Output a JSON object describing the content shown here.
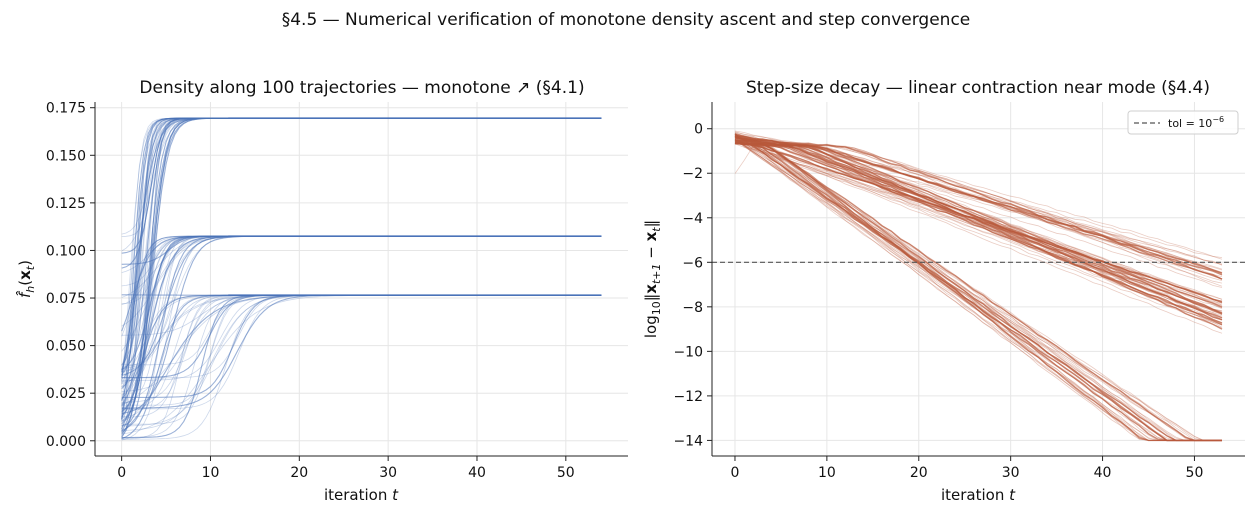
{
  "figure": {
    "suptitle": "§4.5 — Numerical verification of monotone density ascent and step convergence"
  },
  "chart_data": [
    {
      "type": "line",
      "title": "Density along 100 trajectories — monotone ↗ (§4.1)",
      "xlabel": "iteration t",
      "ylabel": "f̂h(xt)",
      "xlim": [
        -3,
        57
      ],
      "ylim": [
        -0.008,
        0.178
      ],
      "xticks": [
        0,
        10,
        20,
        30,
        40,
        50
      ],
      "yticks": [
        0.0,
        0.025,
        0.05,
        0.075,
        0.1,
        0.125,
        0.15,
        0.175
      ],
      "ytick_labels": [
        "0.000",
        "0.025",
        "0.050",
        "0.075",
        "0.100",
        "0.125",
        "0.150",
        "0.175"
      ],
      "grid": true,
      "color": "#4a72b8",
      "n_trajectories": 100,
      "x_end": 54,
      "plateaus": [
        0.1695,
        0.1075,
        0.0765
      ]
    },
    {
      "type": "line",
      "title": "Step-size decay — linear contraction near mode (§4.4)",
      "xlabel": "iteration t",
      "ylabel": "log10‖xt+1 − xt‖",
      "xlim": [
        -2.5,
        55.5
      ],
      "ylim": [
        -14.7,
        1.2
      ],
      "xticks": [
        0,
        10,
        20,
        30,
        40,
        50
      ],
      "yticks": [
        0,
        -2,
        -4,
        -6,
        -8,
        -10,
        -12,
        -14
      ],
      "ytick_labels": [
        "0",
        "−2",
        "−4",
        "−6",
        "−8",
        "−10",
        "−12",
        "−14"
      ],
      "grid": true,
      "color": "#b85a3c",
      "x_end": 53,
      "floor": -14,
      "tolerance": -6,
      "legend": {
        "label": "tol = 10",
        "exponent": "−6",
        "position": "top-right"
      }
    }
  ]
}
